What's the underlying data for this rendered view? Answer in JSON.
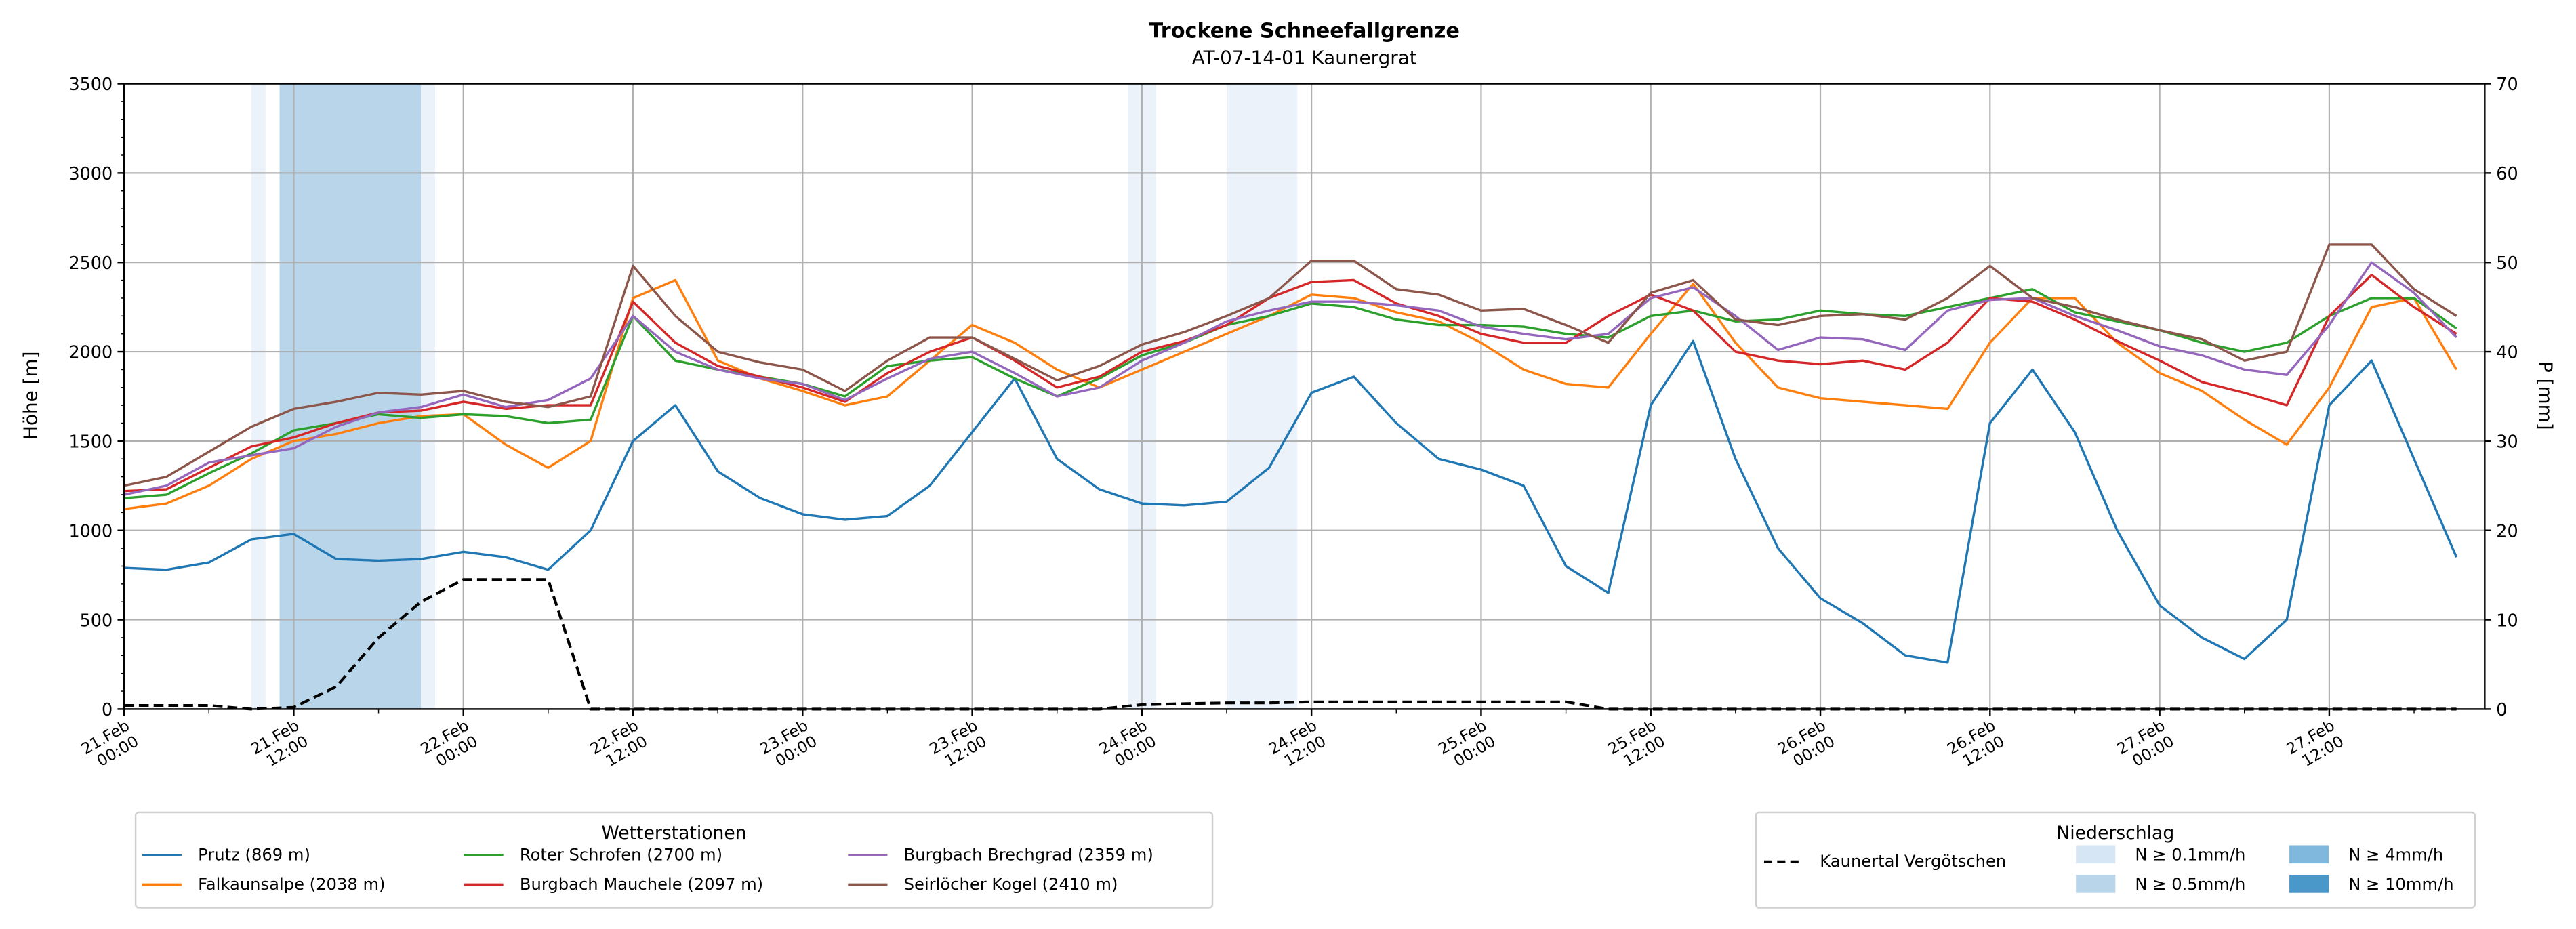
{
  "chart_data": {
    "type": "line",
    "title": "Trockene Schneefallgrenze",
    "subtitle": "AT-07-14-01 Kaunergrat",
    "ylabel": "Höhe [m]",
    "y2label": "P [mm]",
    "ylim": [
      0,
      3500
    ],
    "y2lim": [
      0,
      70
    ],
    "yticks": [
      0,
      500,
      1000,
      1500,
      2000,
      2500,
      3000,
      3500
    ],
    "y2ticks": [
      0,
      10,
      20,
      30,
      40,
      50,
      60,
      70
    ],
    "grid": true,
    "x_unit": "hours since 21.Feb 00:00",
    "xlim": [
      0,
      167
    ],
    "xticks": [
      {
        "hour": 0,
        "label": [
          "21.Feb",
          "00:00"
        ]
      },
      {
        "hour": 12,
        "label": [
          "21.Feb",
          "12:00"
        ]
      },
      {
        "hour": 24,
        "label": [
          "22.Feb",
          "00:00"
        ]
      },
      {
        "hour": 36,
        "label": [
          "22.Feb",
          "12:00"
        ]
      },
      {
        "hour": 48,
        "label": [
          "23.Feb",
          "00:00"
        ]
      },
      {
        "hour": 60,
        "label": [
          "23.Feb",
          "12:00"
        ]
      },
      {
        "hour": 72,
        "label": [
          "24.Feb",
          "00:00"
        ]
      },
      {
        "hour": 84,
        "label": [
          "24.Feb",
          "12:00"
        ]
      },
      {
        "hour": 96,
        "label": [
          "25.Feb",
          "00:00"
        ]
      },
      {
        "hour": 108,
        "label": [
          "25.Feb",
          "12:00"
        ]
      },
      {
        "hour": 120,
        "label": [
          "26.Feb",
          "00:00"
        ]
      },
      {
        "hour": 132,
        "label": [
          "26.Feb",
          "12:00"
        ]
      },
      {
        "hour": 144,
        "label": [
          "27.Feb",
          "00:00"
        ]
      },
      {
        "hour": 156,
        "label": [
          "27.Feb",
          "12:00"
        ]
      }
    ],
    "x_step_hours": 3,
    "series": [
      {
        "name": "Prutz (869 m)",
        "color": "#1f77b4",
        "values": [
          790,
          780,
          820,
          950,
          980,
          840,
          830,
          840,
          880,
          850,
          780,
          1000,
          1500,
          1700,
          1330,
          1180,
          1090,
          1060,
          1080,
          1250,
          1550,
          1850,
          1400,
          1230,
          1150,
          1140,
          1160,
          1350,
          1770,
          1860,
          1600,
          1400,
          1340,
          1250,
          800,
          650,
          1700,
          2060,
          1400,
          900,
          620,
          480,
          300,
          260,
          1600,
          1900,
          1550,
          1000,
          580,
          400,
          280,
          500,
          1700,
          1950,
          1400,
          850
        ]
      },
      {
        "name": "Falkaunsalpe (2038 m)",
        "color": "#ff7f0e",
        "values": [
          1120,
          1150,
          1250,
          1400,
          1500,
          1540,
          1600,
          1640,
          1650,
          1480,
          1350,
          1500,
          2300,
          2400,
          1950,
          1850,
          1780,
          1700,
          1750,
          1950,
          2150,
          2050,
          1900,
          1800,
          1900,
          2000,
          2100,
          2200,
          2320,
          2300,
          2220,
          2170,
          2050,
          1900,
          1820,
          1800,
          2100,
          2380,
          2050,
          1800,
          1740,
          1720,
          1700,
          1680,
          2050,
          2300,
          2300,
          2050,
          1880,
          1780,
          1620,
          1480,
          1800,
          2250,
          2300,
          1900
        ]
      },
      {
        "name": "Roter Schrofen (2700 m)",
        "color": "#2ca02c",
        "values": [
          1180,
          1200,
          1320,
          1430,
          1560,
          1600,
          1650,
          1630,
          1650,
          1640,
          1600,
          1620,
          2200,
          1950,
          1900,
          1860,
          1820,
          1750,
          1920,
          1950,
          1970,
          1850,
          1750,
          1850,
          1980,
          2050,
          2150,
          2200,
          2270,
          2250,
          2180,
          2150,
          2150,
          2140,
          2100,
          2080,
          2200,
          2230,
          2170,
          2180,
          2230,
          2210,
          2200,
          2250,
          2300,
          2350,
          2220,
          2170,
          2120,
          2050,
          2000,
          2050,
          2200,
          2300,
          2300,
          2130
        ]
      },
      {
        "name": "Burgbach Mauchele (2097 m)",
        "color": "#d62728",
        "values": [
          1220,
          1230,
          1350,
          1470,
          1520,
          1600,
          1660,
          1670,
          1720,
          1680,
          1700,
          1700,
          2280,
          2050,
          1920,
          1860,
          1800,
          1720,
          1880,
          2000,
          2080,
          1950,
          1800,
          1860,
          2000,
          2060,
          2150,
          2300,
          2390,
          2400,
          2270,
          2200,
          2100,
          2050,
          2050,
          2200,
          2320,
          2230,
          2000,
          1950,
          1930,
          1950,
          1900,
          2050,
          2300,
          2280,
          2180,
          2060,
          1950,
          1830,
          1770,
          1700,
          2200,
          2430,
          2250,
          2100
        ]
      },
      {
        "name": "Burgbach Brechgrad (2359 m)",
        "color": "#9467bd",
        "values": [
          1200,
          1250,
          1380,
          1420,
          1460,
          1580,
          1660,
          1690,
          1760,
          1690,
          1730,
          1850,
          2200,
          2000,
          1900,
          1850,
          1820,
          1730,
          1850,
          1960,
          2000,
          1880,
          1750,
          1800,
          1950,
          2050,
          2170,
          2230,
          2280,
          2280,
          2260,
          2230,
          2140,
          2100,
          2070,
          2100,
          2300,
          2360,
          2200,
          2010,
          2080,
          2070,
          2010,
          2230,
          2290,
          2300,
          2200,
          2120,
          2030,
          1980,
          1900,
          1870,
          2150,
          2500,
          2330,
          2080
        ]
      },
      {
        "name": "Seirlöcher Kogel (2410 m)",
        "color": "#8c564b",
        "values": [
          1250,
          1300,
          1440,
          1580,
          1680,
          1720,
          1770,
          1760,
          1780,
          1720,
          1690,
          1750,
          2480,
          2200,
          2000,
          1940,
          1900,
          1780,
          1950,
          2080,
          2080,
          1960,
          1840,
          1920,
          2040,
          2110,
          2200,
          2300,
          2510,
          2510,
          2350,
          2320,
          2230,
          2240,
          2150,
          2050,
          2330,
          2400,
          2180,
          2150,
          2200,
          2210,
          2180,
          2300,
          2480,
          2300,
          2250,
          2180,
          2120,
          2070,
          1950,
          2000,
          2600,
          2600,
          2350,
          2200
        ]
      }
    ],
    "precip_series": {
      "name": "Kaunertal Vergötschen",
      "color": "#000000",
      "axis": "right",
      "values": [
        0.4,
        0.4,
        0.4,
        0,
        0.2,
        2.5,
        8,
        12,
        14.5,
        14.5,
        14.5,
        0,
        0,
        0,
        0,
        0,
        0,
        0,
        0,
        0,
        0,
        0,
        0,
        0,
        0.5,
        0.6,
        0.7,
        0.7,
        0.8,
        0.8,
        0.8,
        0.8,
        0.8,
        0.8,
        0.8,
        0,
        0,
        0,
        0,
        0,
        0,
        0,
        0,
        0,
        0,
        0,
        0,
        0,
        0,
        0,
        0,
        0,
        0,
        0,
        0,
        0
      ]
    },
    "precip_bands": [
      {
        "start_hour": 9,
        "end_hour": 10,
        "level": "N ≥ 0.1mm/h"
      },
      {
        "start_hour": 11,
        "end_hour": 21,
        "level": "N ≥ 0.5mm/h"
      },
      {
        "start_hour": 21,
        "end_hour": 22,
        "level": "N ≥ 0.1mm/h"
      },
      {
        "start_hour": 71,
        "end_hour": 73,
        "level": "N ≥ 0.1mm/h"
      },
      {
        "start_hour": 78,
        "end_hour": 83,
        "level": "N ≥ 0.1mm/h"
      }
    ],
    "legend_stations": {
      "title": "Wetterstationen",
      "placement": "bottom-left"
    },
    "legend_precip": {
      "title": "Niederschlag",
      "placement": "bottom-right",
      "line_label": "Kaunertal Vergötschen",
      "levels": [
        {
          "label": "N ≥ 0.1mm/h",
          "color": "#d7e6f4"
        },
        {
          "label": "N ≥ 0.5mm/h",
          "color": "#b9d5ea"
        },
        {
          "label": "N ≥ 4mm/h",
          "color": "#7fb8dc"
        },
        {
          "label": "N ≥ 10mm/h",
          "color": "#4a97c9"
        }
      ]
    }
  }
}
